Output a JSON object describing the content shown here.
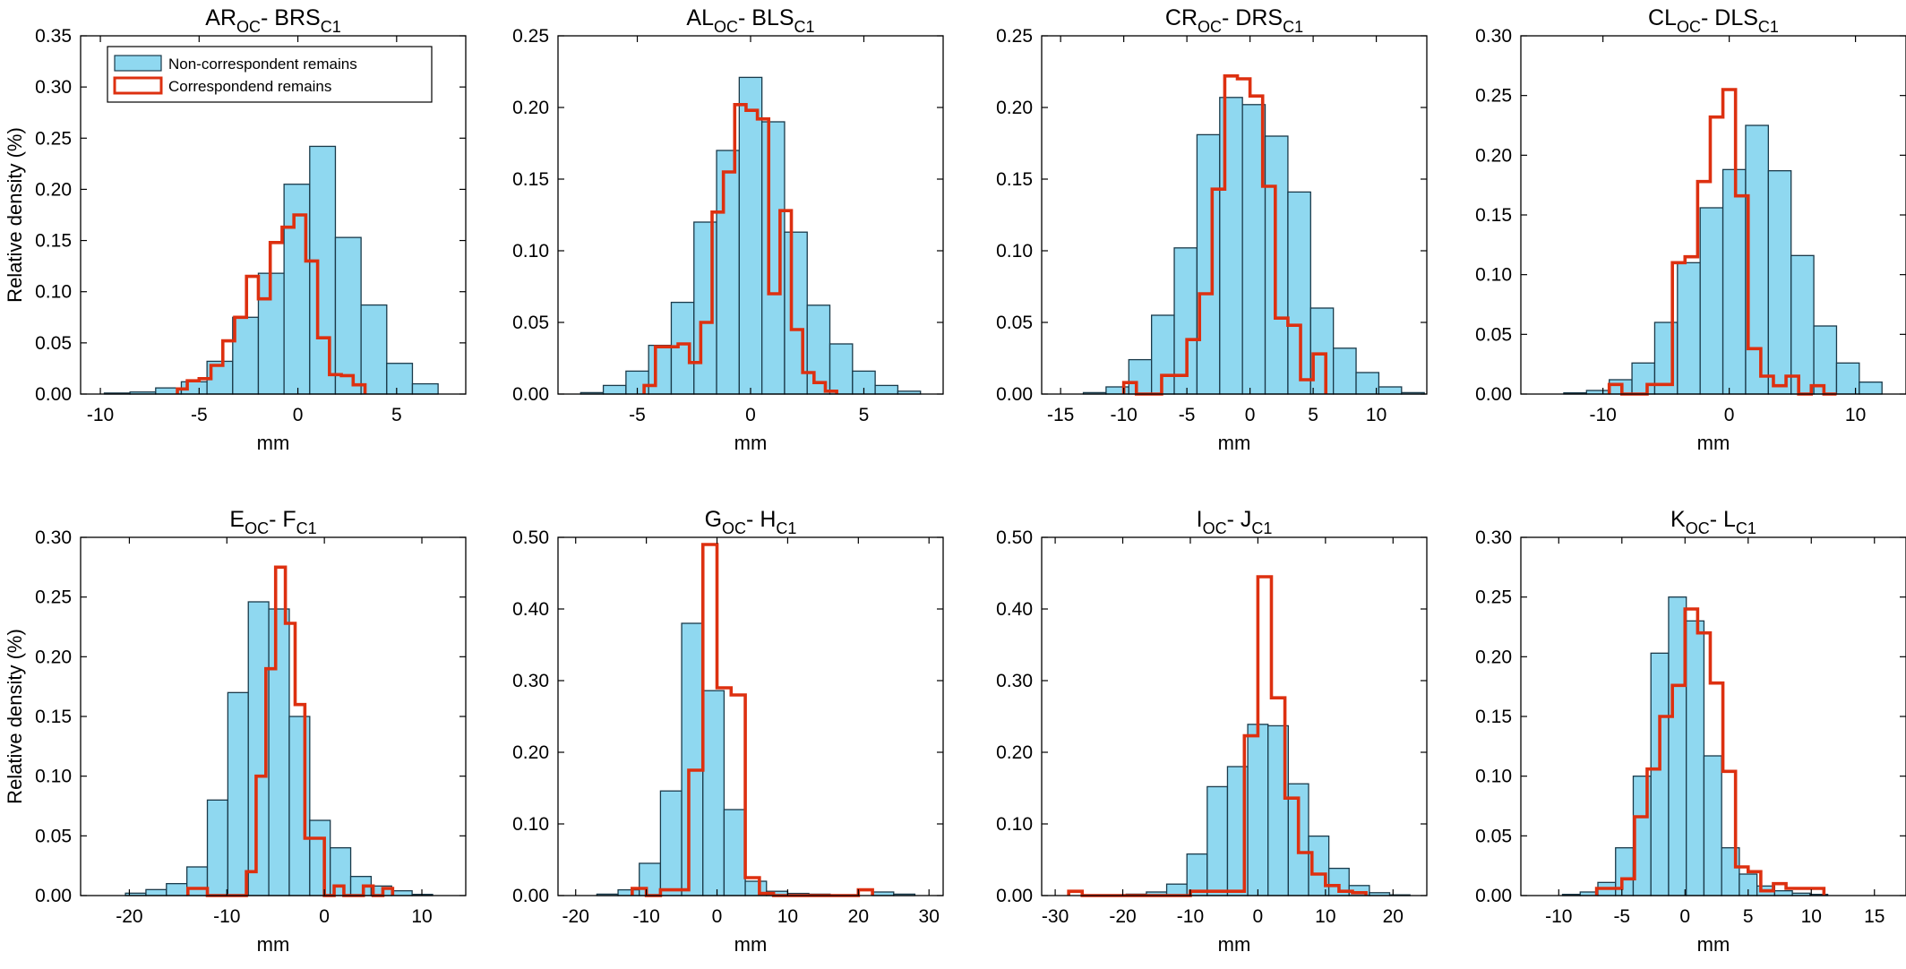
{
  "figure": {
    "nc_color": "#8fd8f0",
    "nc_edge": "#1a3a4a",
    "c_color": "#dd3010"
  },
  "legend": {
    "items": [
      "Non-correspondent remains",
      "Correspondend remains"
    ]
  },
  "chart_data": [
    {
      "type": "bar",
      "title_main": "AR",
      "title_sub1": "OC",
      "title_mid": "- BRS",
      "title_sub2": "C1",
      "xlabel": "mm",
      "ylabel": "Relative density (%)",
      "xlim": [
        -11,
        8.5
      ],
      "ylim": [
        0,
        0.35
      ],
      "xticks": [
        -10,
        -5,
        0,
        5
      ],
      "yticks": [
        "0.00",
        "0.05",
        "0.10",
        "0.15",
        "0.20",
        "0.25",
        "0.30",
        "0.35"
      ],
      "legend": "top-left",
      "series": [
        {
          "name": "Non-correspondent remains",
          "kind": "hist",
          "bins": [
            -9.8,
            -8.5,
            -7.2,
            -5.9,
            -4.6,
            -3.3,
            -2.0,
            -0.7,
            0.6,
            1.9,
            3.2,
            4.5,
            5.8,
            7.1
          ],
          "values": [
            0.001,
            0.002,
            0.006,
            0.012,
            0.032,
            0.075,
            0.118,
            0.205,
            0.242,
            0.153,
            0.087,
            0.03,
            0.01,
            0.002
          ]
        },
        {
          "name": "Correspondend remains",
          "kind": "step",
          "edges": [
            -6.1,
            -5.6,
            -5.0,
            -4.4,
            -3.8,
            -3.2,
            -2.6,
            -2.0,
            -1.4,
            -0.8,
            -0.2,
            0.4,
            1.0,
            1.6,
            2.2,
            2.8,
            3.4
          ],
          "values": [
            0.005,
            0.013,
            0.015,
            0.028,
            0.052,
            0.075,
            0.115,
            0.093,
            0.148,
            0.163,
            0.175,
            0.13,
            0.055,
            0.019,
            0.018,
            0.009
          ]
        }
      ]
    },
    {
      "type": "bar",
      "title_main": "AL",
      "title_sub1": "OC",
      "title_mid": "- BLS",
      "title_sub2": "C1",
      "xlabel": "mm",
      "ylabel": "",
      "xlim": [
        -8.5,
        8.5
      ],
      "ylim": [
        0,
        0.25
      ],
      "xticks": [
        -5,
        0,
        5
      ],
      "yticks": [
        "0.00",
        "0.05",
        "0.10",
        "0.15",
        "0.20",
        "0.25"
      ],
      "series": [
        {
          "name": "Non-correspondent remains",
          "kind": "hist",
          "bins": [
            -7.5,
            -6.5,
            -5.5,
            -4.5,
            -3.5,
            -2.5,
            -1.5,
            -0.5,
            0.5,
            1.5,
            2.5,
            3.5,
            4.5,
            5.5,
            6.5,
            7.5
          ],
          "values": [
            0.001,
            0.006,
            0.016,
            0.034,
            0.064,
            0.12,
            0.17,
            0.221,
            0.19,
            0.113,
            0.062,
            0.035,
            0.016,
            0.006,
            0.002
          ]
        },
        {
          "name": "Correspondend remains",
          "kind": "step",
          "edges": [
            -4.7,
            -4.2,
            -3.7,
            -3.2,
            -2.7,
            -2.2,
            -1.7,
            -1.2,
            -0.7,
            -0.2,
            0.3,
            0.8,
            1.3,
            1.8,
            2.3,
            2.8,
            3.3,
            3.8
          ],
          "values": [
            0.006,
            0.033,
            0.033,
            0.035,
            0.022,
            0.05,
            0.127,
            0.155,
            0.202,
            0.198,
            0.192,
            0.07,
            0.128,
            0.045,
            0.015,
            0.008,
            0.002
          ]
        }
      ]
    },
    {
      "type": "bar",
      "title_main": "CR",
      "title_sub1": "OC",
      "title_mid": "- DRS",
      "title_sub2": "C1",
      "xlabel": "mm",
      "ylabel": "",
      "xlim": [
        -16.5,
        14
      ],
      "ylim": [
        0,
        0.25
      ],
      "xticks": [
        -15,
        -10,
        -5,
        0,
        5,
        10
      ],
      "yticks": [
        "0.00",
        "0.05",
        "0.10",
        "0.15",
        "0.20",
        "0.25"
      ],
      "series": [
        {
          "name": "Non-correspondent remains",
          "kind": "hist",
          "bins": [
            -15,
            -13.2,
            -11.4,
            -9.6,
            -7.8,
            -6.0,
            -4.2,
            -2.4,
            -0.6,
            1.2,
            3.0,
            4.8,
            6.6,
            8.4,
            10.2,
            12.0,
            13.8
          ],
          "values": [
            0.0,
            0.001,
            0.005,
            0.024,
            0.055,
            0.102,
            0.181,
            0.207,
            0.202,
            0.18,
            0.141,
            0.06,
            0.032,
            0.015,
            0.005,
            0.001
          ]
        },
        {
          "name": "Correspondend remains",
          "kind": "step",
          "edges": [
            -10,
            -9,
            -8,
            -7,
            -6,
            -5,
            -4,
            -3,
            -2,
            -1,
            0,
            1,
            2,
            3,
            4,
            5,
            6
          ],
          "values": [
            0.008,
            0.0,
            0.0,
            0.013,
            0.013,
            0.038,
            0.07,
            0.143,
            0.222,
            0.22,
            0.208,
            0.145,
            0.053,
            0.048,
            0.01,
            0.028
          ]
        }
      ]
    },
    {
      "type": "bar",
      "title_main": "CL",
      "title_sub1": "OC",
      "title_mid": "- DLS",
      "title_sub2": "C1",
      "xlabel": "mm",
      "ylabel": "",
      "xlim": [
        -16.5,
        14
      ],
      "ylim": [
        0,
        0.3
      ],
      "xticks": [
        -10,
        0,
        10
      ],
      "yticks": [
        "0.00",
        "0.05",
        "0.10",
        "0.15",
        "0.20",
        "0.25",
        "0.30"
      ],
      "series": [
        {
          "name": "Non-correspondent remains",
          "kind": "hist",
          "bins": [
            -13.1,
            -11.3,
            -9.5,
            -7.7,
            -5.9,
            -4.1,
            -2.3,
            -0.5,
            1.3,
            3.1,
            4.9,
            6.7,
            8.5,
            10.3,
            12.1
          ],
          "values": [
            0.001,
            0.003,
            0.012,
            0.026,
            0.06,
            0.11,
            0.156,
            0.188,
            0.225,
            0.187,
            0.116,
            0.057,
            0.026,
            0.01,
            0.003
          ]
        },
        {
          "name": "Correspondend remains",
          "kind": "step",
          "edges": [
            -9.5,
            -8.5,
            -7.5,
            -6.5,
            -5.5,
            -4.5,
            -3.5,
            -2.5,
            -1.5,
            -0.5,
            0.5,
            1.5,
            2.5,
            3.5,
            4.5,
            5.5,
            6.5,
            7.5,
            8.5
          ],
          "values": [
            0.008,
            0.0,
            0.0,
            0.008,
            0.008,
            0.11,
            0.115,
            0.178,
            0.232,
            0.255,
            0.166,
            0.038,
            0.015,
            0.007,
            0.015,
            0.0,
            0.007,
            0.0
          ]
        }
      ]
    },
    {
      "type": "bar",
      "title_main": "E",
      "title_sub1": "OC",
      "title_mid": "- F",
      "title_sub2": "C1",
      "xlabel": "mm",
      "ylabel": "Relative density (%)",
      "xlim": [
        -25,
        14.5
      ],
      "ylim": [
        0,
        0.3
      ],
      "xticks": [
        -20,
        -10,
        0,
        10
      ],
      "yticks": [
        "0.00",
        "0.05",
        "0.10",
        "0.15",
        "0.20",
        "0.25",
        "0.30"
      ],
      "series": [
        {
          "name": "Non-correspondent remains",
          "kind": "hist",
          "bins": [
            -22.5,
            -20.4,
            -18.3,
            -16.2,
            -14.1,
            -12.0,
            -9.9,
            -7.8,
            -5.7,
            -3.6,
            -1.5,
            0.6,
            2.7,
            4.8,
            6.9,
            9.0,
            11.1
          ],
          "values": [
            0.0,
            0.002,
            0.005,
            0.01,
            0.024,
            0.08,
            0.17,
            0.246,
            0.24,
            0.15,
            0.063,
            0.04,
            0.016,
            0.008,
            0.004,
            0.001
          ]
        },
        {
          "name": "Correspondend remains",
          "kind": "step",
          "edges": [
            -14,
            -13,
            -12,
            -11,
            -10,
            -9,
            -8,
            -7,
            -6,
            -5,
            -4,
            -3,
            -2,
            -1,
            0,
            1,
            2,
            3,
            4,
            5,
            6,
            7
          ],
          "values": [
            0.006,
            0.006,
            0.0,
            0.0,
            0.0,
            0.0,
            0.02,
            0.1,
            0.19,
            0.275,
            0.228,
            0.16,
            0.048,
            0.048,
            0.0,
            0.008,
            0.0,
            0.0,
            0.008,
            0.0,
            0.006
          ]
        }
      ]
    },
    {
      "type": "bar",
      "title_main": "G",
      "title_sub1": "OC",
      "title_mid": "- H",
      "title_sub2": "C1",
      "xlabel": "mm",
      "ylabel": "",
      "xlim": [
        -22.5,
        32
      ],
      "ylim": [
        0,
        0.5
      ],
      "xticks": [
        -20,
        -10,
        0,
        10,
        20,
        30
      ],
      "yticks": [
        "0.00",
        "0.10",
        "0.20",
        "0.30",
        "0.40",
        "0.50"
      ],
      "series": [
        {
          "name": "Non-correspondent remains",
          "kind": "hist",
          "bins": [
            -20,
            -17,
            -14,
            -11,
            -8,
            -5,
            -2,
            1,
            4,
            7,
            10,
            13,
            16,
            19,
            22,
            25,
            28
          ],
          "values": [
            0.0,
            0.002,
            0.008,
            0.045,
            0.146,
            0.38,
            0.286,
            0.12,
            0.02,
            0.006,
            0.003,
            0.002,
            0.001,
            0.0,
            0.005,
            0.002
          ]
        },
        {
          "name": "Correspondend remains",
          "kind": "step",
          "edges": [
            -12,
            -10,
            -8,
            -6,
            -4,
            -2,
            0,
            2,
            4,
            6,
            8,
            10,
            12,
            14,
            16,
            18,
            20,
            22
          ],
          "values": [
            0.01,
            0.0,
            0.008,
            0.008,
            0.175,
            0.49,
            0.29,
            0.28,
            0.025,
            0.003,
            0.0,
            0.0,
            0.0,
            0.0,
            0.0,
            0.0,
            0.008
          ]
        }
      ]
    },
    {
      "type": "bar",
      "title_main": "I",
      "title_sub1": "OC",
      "title_mid": "- J",
      "title_sub2": "C1",
      "xlabel": "mm",
      "ylabel": "",
      "xlim": [
        -32,
        25
      ],
      "ylim": [
        0,
        0.5
      ],
      "xticks": [
        -30,
        -20,
        -10,
        0,
        10,
        20
      ],
      "yticks": [
        "0.00",
        "0.10",
        "0.20",
        "0.30",
        "0.40",
        "0.50"
      ],
      "series": [
        {
          "name": "Non-correspondent remains",
          "kind": "hist",
          "bins": [
            -22.5,
            -19.5,
            -16.5,
            -13.5,
            -10.5,
            -7.5,
            -4.5,
            -1.5,
            1.5,
            4.5,
            7.5,
            10.5,
            13.5,
            16.5,
            19.5,
            22.5
          ],
          "values": [
            0.0,
            0.002,
            0.005,
            0.016,
            0.058,
            0.152,
            0.18,
            0.239,
            0.237,
            0.156,
            0.083,
            0.038,
            0.014,
            0.004,
            0.001
          ]
        },
        {
          "name": "Correspondend remains",
          "kind": "step",
          "edges": [
            -28,
            -26,
            -24,
            -22,
            -20,
            -18,
            -16,
            -14,
            -12,
            -10,
            -8,
            -6,
            -4,
            -2,
            0,
            2,
            4,
            6,
            8,
            10,
            12,
            14,
            16
          ],
          "values": [
            0.006,
            0.0,
            0.0,
            0.0,
            0.0,
            0.0,
            0.0,
            0.0,
            0.0,
            0.006,
            0.006,
            0.006,
            0.006,
            0.223,
            0.445,
            0.276,
            0.136,
            0.06,
            0.03,
            0.014,
            0.006,
            0.004
          ]
        }
      ]
    },
    {
      "type": "bar",
      "title_main": "K",
      "title_sub1": "OC",
      "title_mid": "- L",
      "title_sub2": "C1",
      "xlabel": "mm",
      "ylabel": "",
      "xlim": [
        -13,
        17.5
      ],
      "ylim": [
        0,
        0.3
      ],
      "xticks": [
        -10,
        -5,
        0,
        5,
        10,
        15
      ],
      "yticks": [
        "0.00",
        "0.05",
        "0.10",
        "0.15",
        "0.20",
        "0.25",
        "0.30"
      ],
      "series": [
        {
          "name": "Non-correspondent remains",
          "kind": "hist",
          "bins": [
            -11.1,
            -9.7,
            -8.3,
            -6.9,
            -5.5,
            -4.1,
            -2.7,
            -1.3,
            0.1,
            1.5,
            2.9,
            4.3,
            5.7,
            7.1,
            8.5,
            9.9,
            11.3,
            12.7,
            14.1
          ],
          "values": [
            0.0,
            0.001,
            0.003,
            0.011,
            0.04,
            0.1,
            0.203,
            0.25,
            0.23,
            0.117,
            0.04,
            0.018,
            0.008,
            0.004,
            0.002,
            0.001,
            0.0,
            0.0
          ]
        },
        {
          "name": "Correspondend remains",
          "kind": "step",
          "edges": [
            -7,
            -6,
            -5,
            -4,
            -3,
            -2,
            -1,
            0,
            1,
            2,
            3,
            4,
            5,
            6,
            7,
            8,
            9,
            10,
            11
          ],
          "values": [
            0.006,
            0.006,
            0.014,
            0.066,
            0.106,
            0.15,
            0.176,
            0.24,
            0.22,
            0.178,
            0.104,
            0.024,
            0.02,
            0.004,
            0.01,
            0.006,
            0.006,
            0.006
          ]
        }
      ]
    }
  ]
}
